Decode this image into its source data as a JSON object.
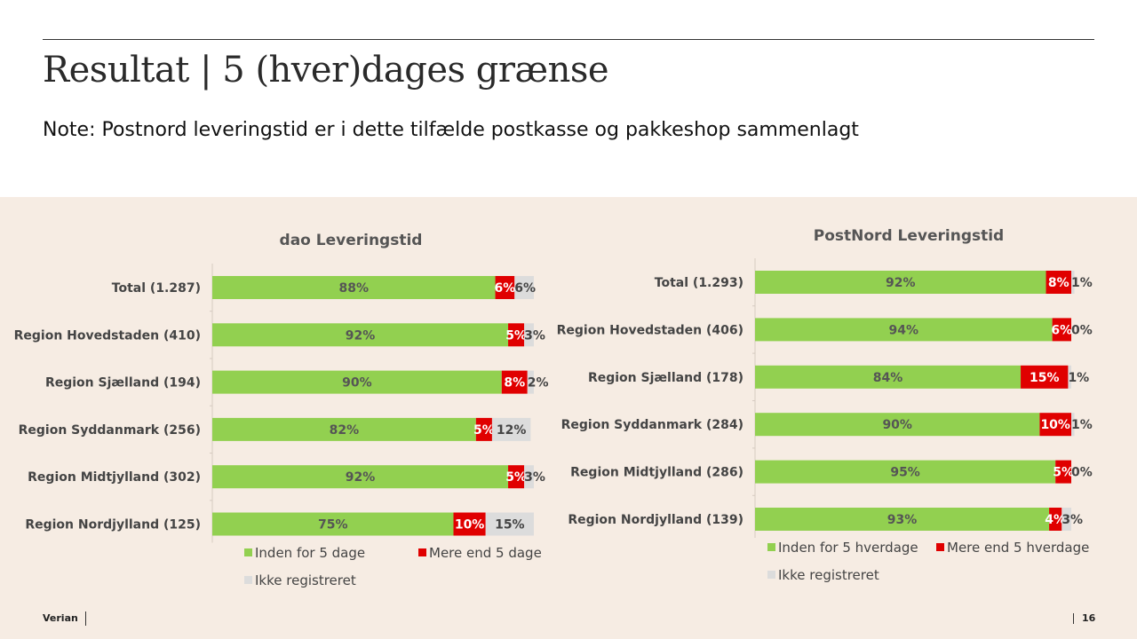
{
  "header": {
    "title": "Resultat | 5 (hver)dages grænse",
    "note": "Note: Postnord leveringstid er i dette tilfælde postkasse og pakkeshop sammenlagt"
  },
  "footer": {
    "brand": "Verian",
    "page_number": "16"
  },
  "colors": {
    "green": "#92d050",
    "red": "#e00000",
    "gray": "#dcdcdc",
    "panel_bg": "#f6ece3"
  },
  "chart_data": [
    {
      "type": "bar",
      "orientation": "horizontal",
      "stacked": true,
      "title": "dao Leveringstid",
      "categories": [
        "Total (1.287)",
        "Region Hovedstaden (410)",
        "Region Sjælland (194)",
        "Region Syddanmark (256)",
        "Region Midtjylland (302)",
        "Region Nordjylland (125)"
      ],
      "series": [
        {
          "name": "Inden for 5 dage",
          "color": "#92d050",
          "values": [
            88,
            92,
            90,
            82,
            92,
            75
          ]
        },
        {
          "name": "Mere end 5 dage",
          "color": "#e00000",
          "values": [
            6,
            5,
            8,
            5,
            5,
            10
          ]
        },
        {
          "name": "Ikke registreret",
          "color": "#dcdcdc",
          "values": [
            6,
            3,
            2,
            12,
            3,
            15
          ]
        }
      ],
      "value_suffix": "%",
      "xlim": [
        0,
        100
      ],
      "legend": "bottom"
    },
    {
      "type": "bar",
      "orientation": "horizontal",
      "stacked": true,
      "title": "PostNord Leveringstid",
      "categories": [
        "Total (1.293)",
        "Region Hovedstaden (406)",
        "Region Sjælland (178)",
        "Region Syddanmark (284)",
        "Region Midtjylland (286)",
        "Region Nordjylland (139)"
      ],
      "series": [
        {
          "name": "Inden for 5 hverdage",
          "color": "#92d050",
          "values": [
            92,
            94,
            84,
            90,
            95,
            93
          ]
        },
        {
          "name": "Mere end 5 hverdage",
          "color": "#e00000",
          "values": [
            8,
            6,
            15,
            10,
            5,
            4
          ]
        },
        {
          "name": "Ikke registreret",
          "color": "#dcdcdc",
          "values": [
            1,
            0,
            1,
            1,
            0,
            3
          ]
        }
      ],
      "value_suffix": "%",
      "xlim": [
        0,
        100
      ],
      "legend": "bottom"
    }
  ]
}
